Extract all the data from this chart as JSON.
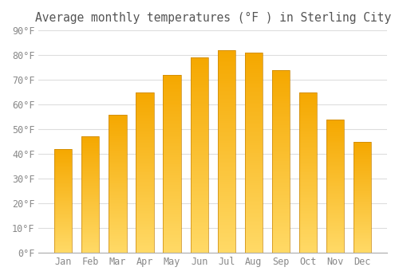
{
  "months": [
    "Jan",
    "Feb",
    "Mar",
    "Apr",
    "May",
    "Jun",
    "Jul",
    "Aug",
    "Sep",
    "Oct",
    "Nov",
    "Dec"
  ],
  "values": [
    42,
    47,
    56,
    65,
    72,
    79,
    82,
    81,
    74,
    65,
    54,
    45
  ],
  "bar_color_top": "#F5A800",
  "bar_color_bottom": "#FFD966",
  "bar_edge_color": "#C8860A",
  "title": "Average monthly temperatures (°F ) in Sterling City",
  "ylim": [
    0,
    90
  ],
  "ytick_step": 10,
  "background_color": "#ffffff",
  "grid_color": "#dddddd",
  "title_fontsize": 10.5,
  "tick_fontsize": 8.5,
  "bar_width": 0.65
}
